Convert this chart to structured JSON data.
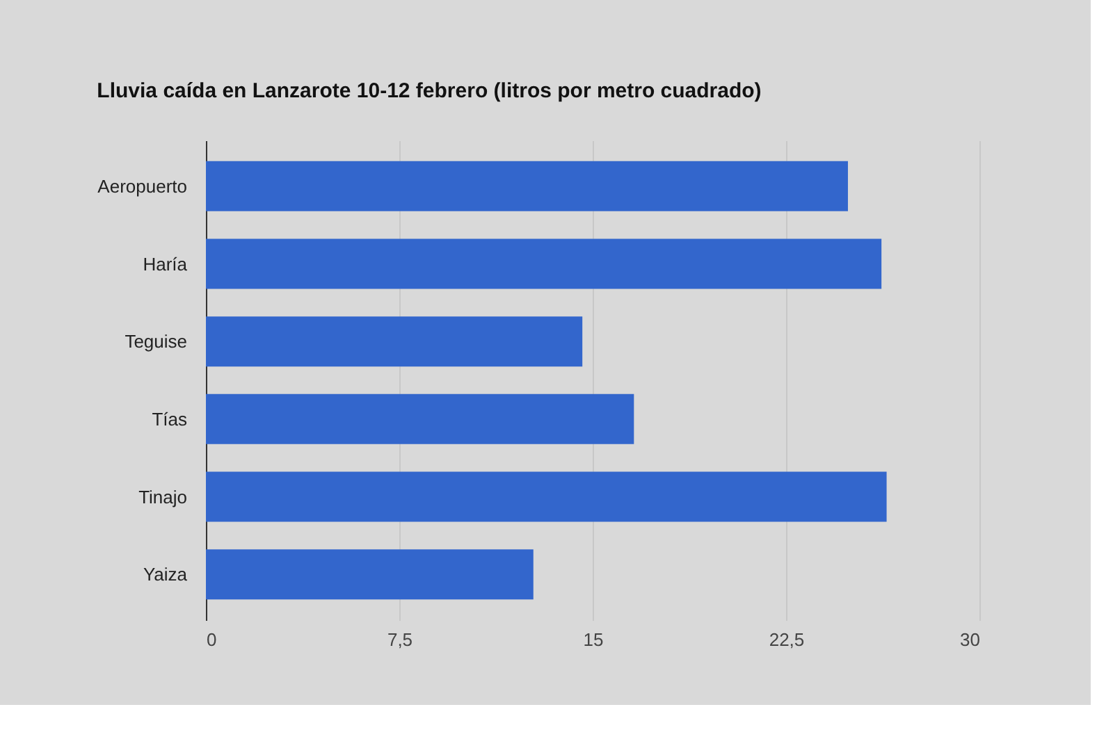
{
  "chart_data": {
    "type": "bar",
    "orientation": "horizontal",
    "title": "Lluvia caída en Lanzarote 10-12 febrero (litros por metro cuadrado)",
    "categories": [
      "Aeropuerto",
      "Haría",
      "Teguise",
      "Tías",
      "Tinajo",
      "Yaiza"
    ],
    "values": [
      24.9,
      26.2,
      14.6,
      16.6,
      26.4,
      12.7
    ],
    "color": "#3366cc",
    "xlim": [
      0,
      30
    ],
    "xticks": [
      0,
      {
        "value": 7.5,
        "label": "7,5"
      },
      15,
      {
        "value": 22.5,
        "label": "22,5"
      },
      30
    ],
    "grid": "x"
  }
}
